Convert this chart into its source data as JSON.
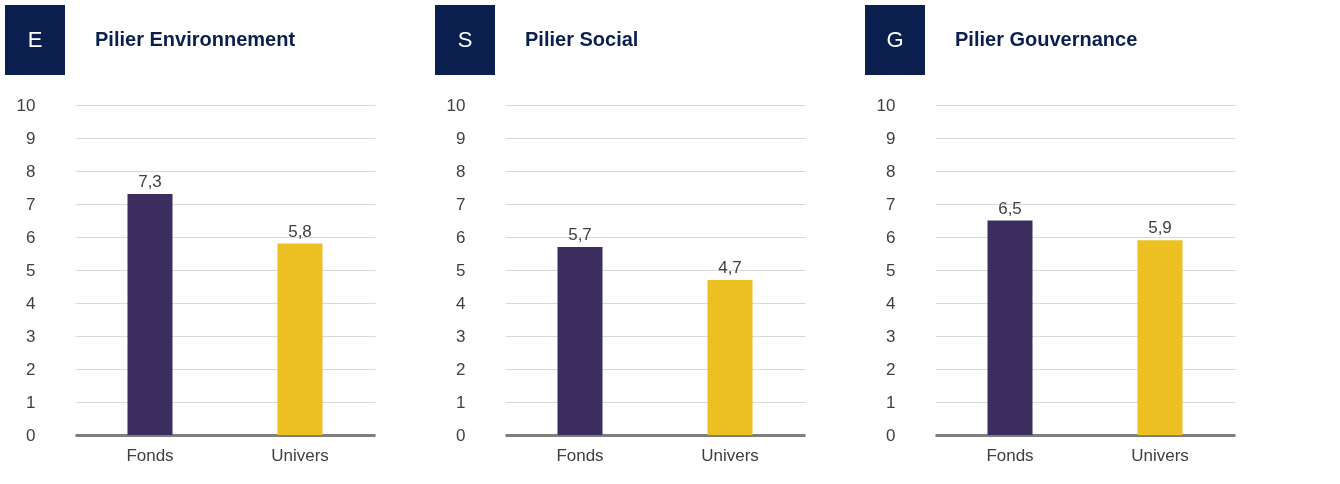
{
  "chart_data": [
    {
      "type": "bar",
      "title": "Pilier Environnement",
      "annotations": [
        "E"
      ],
      "categories": [
        "Fonds",
        "Univers"
      ],
      "values": [
        7.3,
        5.8
      ],
      "colors": [
        "#3b2d5e",
        "#ecc023"
      ],
      "value_labels": [
        "7,3",
        "5,8"
      ],
      "ylim": [
        0,
        10
      ],
      "yticks": [
        0,
        1,
        2,
        3,
        4,
        5,
        6,
        7,
        8,
        9,
        10
      ],
      "grid": "y",
      "legend": false
    },
    {
      "type": "bar",
      "title": "Pilier Social",
      "annotations": [
        "S"
      ],
      "categories": [
        "Fonds",
        "Univers"
      ],
      "values": [
        5.7,
        4.7
      ],
      "colors": [
        "#3b2d5e",
        "#ecc023"
      ],
      "value_labels": [
        "5,7",
        "4,7"
      ],
      "ylim": [
        0,
        10
      ],
      "yticks": [
        0,
        1,
        2,
        3,
        4,
        5,
        6,
        7,
        8,
        9,
        10
      ],
      "grid": "y",
      "legend": false
    },
    {
      "type": "bar",
      "title": "Pilier Gouvernance",
      "annotations": [
        "G"
      ],
      "categories": [
        "Fonds",
        "Univers"
      ],
      "values": [
        6.5,
        5.9
      ],
      "colors": [
        "#3b2d5e",
        "#ecc023"
      ],
      "value_labels": [
        "6,5",
        "5,9"
      ],
      "ylim": [
        0,
        10
      ],
      "yticks": [
        0,
        1,
        2,
        3,
        4,
        5,
        6,
        7,
        8,
        9,
        10
      ],
      "grid": "y",
      "legend": false
    }
  ]
}
